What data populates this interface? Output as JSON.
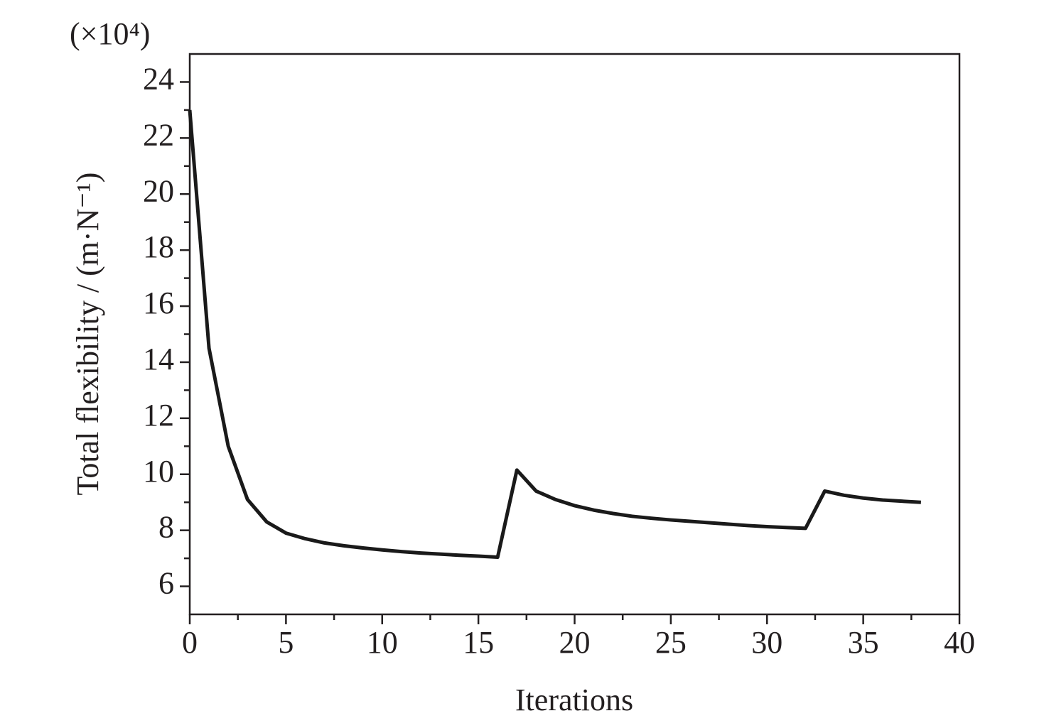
{
  "chart_data": {
    "type": "line",
    "multiplier_label": "(×10⁴)",
    "x_label": "Iterations",
    "y_label": "Total flexibility / (m·N⁻¹)",
    "x": [
      0,
      1,
      2,
      3,
      4,
      5,
      6,
      7,
      8,
      9,
      10,
      11,
      12,
      13,
      14,
      15,
      16,
      17,
      18,
      19,
      20,
      21,
      22,
      23,
      24,
      25,
      26,
      27,
      28,
      29,
      30,
      31,
      32,
      33,
      34,
      35,
      36,
      37,
      38
    ],
    "series": [
      {
        "color": "#1a1a1a",
        "values": [
          23,
          14.5,
          11,
          9.1,
          8.3,
          7.9,
          7.7,
          7.55,
          7.45,
          7.37,
          7.3,
          7.24,
          7.19,
          7.15,
          7.11,
          7.08,
          7.04,
          10.15,
          9.4,
          9.1,
          8.88,
          8.72,
          8.6,
          8.5,
          8.43,
          8.37,
          8.32,
          8.27,
          8.22,
          8.17,
          8.13,
          8.1,
          8.07,
          9.4,
          9.25,
          9.15,
          9.08,
          9.04,
          9.0
        ]
      }
    ],
    "xlim": [
      0,
      40
    ],
    "xticks": [
      0,
      5,
      10,
      15,
      20,
      25,
      30,
      35,
      40
    ],
    "ylim": [
      5,
      25
    ],
    "yticks": [
      6,
      8,
      10,
      12,
      14,
      16,
      18,
      20,
      22,
      24
    ]
  }
}
